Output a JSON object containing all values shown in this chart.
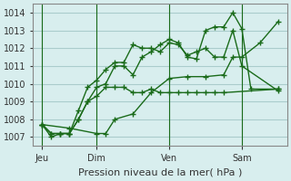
{
  "background_color": "#d8eeee",
  "grid_color": "#aacccc",
  "line_color": "#1a6b1a",
  "marker_color": "#1a6b1a",
  "title": "Pression niveau de la mer( hPa )",
  "ylim": [
    1006.5,
    1014.5
  ],
  "yticks": [
    1007,
    1008,
    1009,
    1010,
    1011,
    1012,
    1013,
    1014
  ],
  "x_tick_labels": [
    "Jeu",
    "Dim",
    "Ven",
    "Sam"
  ],
  "x_tick_positions": [
    0,
    3,
    7,
    11
  ],
  "x_vlines": [
    0,
    3,
    7,
    11
  ],
  "series": [
    [
      1007.7,
      1007.5,
      1007.2,
      1007.2,
      1008.0,
      1008.3,
      1009.5,
      1010.3,
      1010.4,
      1010.4,
      1010.5,
      1011.5,
      1011.5,
      1012.3,
      1013.5
    ],
    [
      1007.7,
      1007.0,
      1007.2,
      1007.2,
      1008.0,
      1009.0,
      1009.8,
      1010.0,
      1011.0,
      1011.0,
      1010.5,
      1011.5,
      1011.8,
      1012.2,
      1012.5,
      1012.3,
      1011.5,
      1011.4,
      1013.0,
      1013.2,
      1013.2,
      1014.0,
      1013.1,
      1009.7,
      1009.7
    ],
    [
      1007.7,
      1007.2,
      1007.2,
      1007.2,
      1008.5,
      1009.8,
      1010.2,
      1010.8,
      1011.2,
      1011.2,
      1012.2,
      1012.0,
      1012.0,
      1011.8,
      1012.3,
      1012.2,
      1011.6,
      1011.8,
      1012.0,
      1011.5,
      1011.5,
      1013.0,
      1011.0,
      1009.6
    ],
    [
      1007.7,
      1007.2,
      1007.2,
      1007.2,
      1008.0,
      1009.0,
      1009.3,
      1009.8,
      1009.8,
      1009.8,
      1009.5,
      1009.5,
      1009.7,
      1009.5,
      1009.5,
      1009.5,
      1009.5,
      1009.5,
      1009.5,
      1009.5,
      1009.5,
      1009.7
    ]
  ],
  "series_x": [
    [
      0,
      1.5,
      3,
      3.5,
      4,
      5,
      6,
      7,
      8,
      9,
      10,
      10.5,
      11,
      12,
      13
    ],
    [
      0,
      0.5,
      1,
      1.5,
      2,
      2.5,
      3,
      3.5,
      4,
      4.5,
      5,
      5.5,
      6,
      6.5,
      7,
      7.5,
      8,
      8.5,
      9,
      9.5,
      10,
      10.5,
      11,
      11.5,
      13
    ],
    [
      0,
      0.5,
      1,
      1.5,
      2,
      2.5,
      3,
      3.5,
      4,
      4.5,
      5,
      5.5,
      6,
      6.5,
      7,
      7.5,
      8,
      8.5,
      9,
      9.5,
      10,
      10.5,
      11,
      13
    ],
    [
      0,
      0.5,
      1,
      1.5,
      2,
      2.5,
      3,
      3.5,
      4,
      4.5,
      5,
      5.5,
      6,
      6.5,
      7,
      7.5,
      8,
      8.5,
      9,
      9.5,
      10,
      13
    ]
  ]
}
